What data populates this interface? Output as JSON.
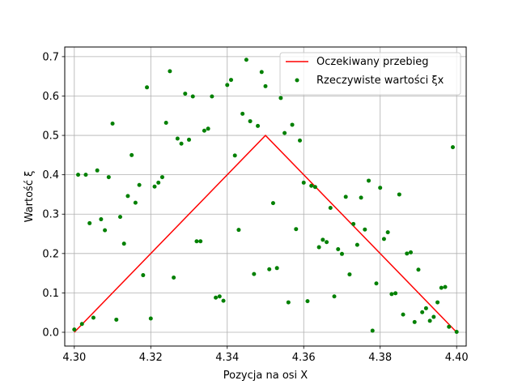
{
  "chart_data": {
    "type": "line",
    "title": "",
    "xlabel": "Pozycja na osi X",
    "ylabel": "Wartość ξ",
    "xlim": [
      4.2975,
      4.4025
    ],
    "ylim": [
      -0.035,
      0.7245
    ],
    "xticks": [
      4.3,
      4.32,
      4.34,
      4.36,
      4.38,
      4.4
    ],
    "xtick_labels": [
      "4.30",
      "4.32",
      "4.34",
      "4.36",
      "4.38",
      "4.40"
    ],
    "yticks": [
      0.0,
      0.1,
      0.2,
      0.3,
      0.4,
      0.5,
      0.6,
      0.7
    ],
    "ytick_labels": [
      "0.0",
      "0.1",
      "0.2",
      "0.3",
      "0.4",
      "0.5",
      "0.6",
      "0.7"
    ],
    "grid": true,
    "legend_position": "top-right",
    "series": [
      {
        "name": "Oczekiwany przebieg",
        "type": "line",
        "color": "#ff0000",
        "x": [
          4.3,
          4.35,
          4.4
        ],
        "y": [
          0.0,
          0.5,
          0.0
        ]
      },
      {
        "name": "Rzeczywiste wartości ξx",
        "type": "scatter",
        "color": "#008000",
        "x": [
          4.3,
          4.301,
          4.302,
          4.303,
          4.304,
          4.305,
          4.306,
          4.307,
          4.308,
          4.309,
          4.31,
          4.311,
          4.312,
          4.313,
          4.314,
          4.315,
          4.316,
          4.317,
          4.318,
          4.319,
          4.32,
          4.321,
          4.322,
          4.323,
          4.324,
          4.325,
          4.326,
          4.327,
          4.328,
          4.329,
          4.33,
          4.331,
          4.332,
          4.333,
          4.334,
          4.335,
          4.336,
          4.337,
          4.338,
          4.339,
          4.34,
          4.341,
          4.342,
          4.343,
          4.344,
          4.345,
          4.346,
          4.347,
          4.348,
          4.349,
          4.35,
          4.351,
          4.352,
          4.353,
          4.354,
          4.355,
          4.356,
          4.357,
          4.358,
          4.359,
          4.36,
          4.361,
          4.362,
          4.363,
          4.364,
          4.365,
          4.366,
          4.367,
          4.368,
          4.369,
          4.37,
          4.371,
          4.372,
          4.373,
          4.374,
          4.375,
          4.376,
          4.377,
          4.378,
          4.379,
          4.38,
          4.381,
          4.382,
          4.383,
          4.384,
          4.385,
          4.386,
          4.387,
          4.388,
          4.389,
          4.39,
          4.391,
          4.392,
          4.393,
          4.394,
          4.395,
          4.396,
          4.397,
          4.398,
          4.399,
          4.4
        ],
        "y": [
          0.007,
          0.4,
          0.021,
          0.4,
          0.277,
          0.037,
          0.411,
          0.287,
          0.259,
          0.394,
          0.53,
          0.032,
          0.293,
          0.225,
          0.346,
          0.45,
          0.329,
          0.374,
          0.145,
          0.622,
          0.035,
          0.37,
          0.38,
          0.394,
          0.532,
          0.663,
          0.139,
          0.492,
          0.479,
          0.606,
          0.489,
          0.599,
          0.231,
          0.231,
          0.512,
          0.517,
          0.599,
          0.088,
          0.091,
          0.08,
          0.628,
          0.641,
          0.449,
          0.26,
          0.555,
          0.692,
          0.536,
          0.148,
          0.524,
          0.661,
          0.625,
          0.16,
          0.328,
          0.163,
          0.595,
          0.506,
          0.076,
          0.527,
          0.262,
          0.487,
          0.38,
          0.079,
          0.372,
          0.369,
          0.216,
          0.235,
          0.229,
          0.316,
          0.091,
          0.211,
          0.199,
          0.344,
          0.147,
          0.275,
          0.222,
          0.342,
          0.261,
          0.385,
          0.004,
          0.124,
          0.367,
          0.237,
          0.254,
          0.097,
          0.099,
          0.35,
          0.045,
          0.2,
          0.203,
          0.026,
          0.159,
          0.051,
          0.061,
          0.029,
          0.039,
          0.076,
          0.113,
          0.115,
          0.014,
          0.47,
          0.001
        ]
      }
    ]
  }
}
